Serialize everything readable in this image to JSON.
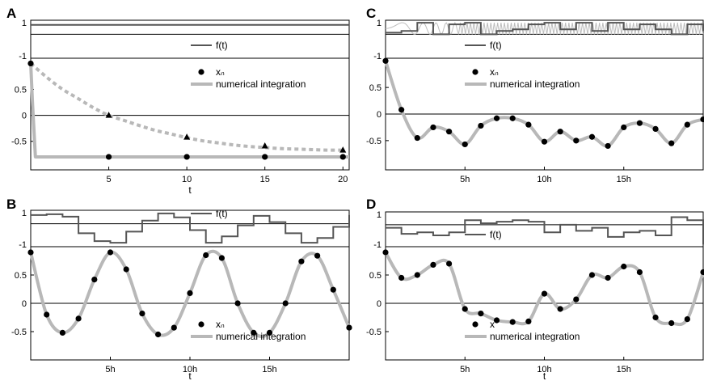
{
  "chart_data": [
    {
      "panel": "A",
      "type": "line",
      "forcing": {
        "yticks": [
          "1",
          "-1"
        ],
        "legend": [
          "f(t)"
        ],
        "values": [
          0.87
        ]
      },
      "xlabel": "t",
      "xticks": [
        "5",
        "10",
        "15",
        "20"
      ],
      "xlim": [
        0,
        20.4
      ],
      "ylim": [
        -1.05,
        1.1
      ],
      "yticks": [
        "0.5",
        "0",
        "-0.5"
      ],
      "legend": [
        "xₙ",
        "numerical integration"
      ],
      "series": [
        {
          "style": "numerical-solid",
          "x": [
            0,
            0.12,
            0.3,
            20.4
          ],
          "y": [
            1.0,
            0.2,
            -0.8,
            -0.8
          ]
        },
        {
          "style": "numerical-dashed",
          "x": [
            0,
            1,
            2,
            3,
            4,
            5,
            6,
            7,
            8,
            9,
            10,
            11,
            12,
            13,
            14,
            15,
            16,
            17,
            18,
            19,
            20
          ],
          "y": [
            1.0,
            0.74,
            0.51,
            0.33,
            0.15,
            0.0,
            -0.1,
            -0.2,
            -0.29,
            -0.36,
            -0.43,
            -0.49,
            -0.53,
            -0.57,
            -0.6,
            -0.62,
            -0.64,
            -0.65,
            -0.66,
            -0.67,
            -0.67
          ]
        }
      ],
      "points": {
        "x": [
          0,
          5,
          10,
          15,
          20
        ],
        "y": [
          1.0,
          -0.8,
          -0.8,
          -0.8,
          -0.8
        ]
      },
      "triangles": {
        "x": [
          5,
          10,
          15,
          20
        ],
        "y": [
          0.0,
          -0.42,
          -0.59,
          -0.67
        ]
      }
    },
    {
      "panel": "B",
      "type": "line",
      "forcing": {
        "yticks": [
          "1",
          "-1"
        ],
        "legend": [
          "f(t)"
        ],
        "step_width": 1,
        "values": [
          0.85,
          0.9,
          0.75,
          -0.3,
          -0.8,
          -0.9,
          -0.2,
          0.5,
          0.95,
          0.7,
          -0.1,
          -0.9,
          -0.5,
          0.2,
          0.8,
          0.4,
          -0.3,
          -0.9,
          -0.6,
          0.1,
          0.85
        ]
      },
      "xlabel": "t",
      "xticks": [
        "5h",
        "10h",
        "15h"
      ],
      "xlim": [
        0,
        20
      ],
      "ylim": [
        -1.0,
        1.0
      ],
      "yticks": [
        "0.5",
        "0",
        "-0.5"
      ],
      "legend": [
        "xₙ",
        "numerical integration"
      ],
      "series": [
        {
          "style": "numerical-solid",
          "x": [
            0,
            1,
            2,
            3,
            4,
            5,
            6,
            7,
            8,
            9,
            10,
            11,
            12,
            13,
            14,
            15,
            16,
            17,
            18,
            19,
            20
          ],
          "y": [
            0.9,
            -0.2,
            -0.52,
            -0.27,
            0.42,
            0.9,
            0.6,
            -0.18,
            -0.55,
            -0.43,
            0.18,
            0.85,
            0.8,
            0.0,
            -0.52,
            -0.52,
            0.0,
            0.74,
            0.84,
            0.24,
            -0.43
          ]
        }
      ],
      "points": {
        "x": [
          0,
          1,
          2,
          3,
          4,
          5,
          6,
          7,
          8,
          9,
          10,
          11,
          12,
          13,
          14,
          15,
          16,
          17,
          18,
          19,
          20
        ],
        "y": [
          0.9,
          -0.2,
          -0.52,
          -0.27,
          0.42,
          0.9,
          0.6,
          -0.18,
          -0.55,
          -0.43,
          0.18,
          0.85,
          0.8,
          0.0,
          -0.52,
          -0.52,
          0.0,
          0.74,
          0.84,
          0.24,
          -0.43
        ]
      }
    },
    {
      "panel": "C",
      "type": "line",
      "forcing": {
        "yticks": [
          "1",
          "-1"
        ],
        "legend": [
          "f(t)"
        ],
        "step_width": 1,
        "values": [
          0.4,
          0.5,
          1.0,
          0.3,
          0.9,
          1.0,
          0.3,
          0.5,
          0.6,
          0.9,
          1.0,
          0.6,
          1.0,
          0.5,
          1.0,
          0.6,
          0.9,
          0.6,
          0.3,
          0.9,
          0.5
        ]
      },
      "xlabel": "",
      "xticks": [
        "5h",
        "10h",
        "15h"
      ],
      "xlim": [
        0,
        20
      ],
      "ylim": [
        -1.05,
        1.05
      ],
      "yticks": [
        "0.5",
        "0",
        "-0.5"
      ],
      "legend": [
        "xₙ",
        "numerical integration"
      ],
      "series": [
        {
          "style": "numerical-solid",
          "x": [
            0,
            1,
            2,
            3,
            4,
            5,
            6,
            7,
            8,
            9,
            10,
            11,
            12,
            13,
            14,
            15,
            16,
            17,
            18,
            19,
            20
          ],
          "y": [
            1.0,
            0.08,
            -0.45,
            -0.25,
            -0.33,
            -0.57,
            -0.22,
            -0.08,
            -0.08,
            -0.2,
            -0.52,
            -0.33,
            -0.5,
            -0.43,
            -0.6,
            -0.25,
            -0.17,
            -0.28,
            -0.55,
            -0.2,
            -0.1
          ]
        }
      ],
      "points": {
        "x": [
          0,
          1,
          2,
          3,
          4,
          5,
          6,
          7,
          8,
          9,
          10,
          11,
          12,
          13,
          14,
          15,
          16,
          17,
          18,
          19,
          20
        ],
        "y": [
          1.0,
          0.08,
          -0.45,
          -0.25,
          -0.33,
          -0.57,
          -0.22,
          -0.08,
          -0.08,
          -0.2,
          -0.52,
          -0.33,
          -0.5,
          -0.43,
          -0.6,
          -0.25,
          -0.17,
          -0.28,
          -0.55,
          -0.2,
          -0.1
        ]
      }
    },
    {
      "panel": "D",
      "type": "line",
      "forcing": {
        "yticks": [
          "1",
          "-1"
        ],
        "legend": [
          "f(t)"
        ],
        "step_width": 1,
        "values": [
          0.1,
          -0.3,
          -0.2,
          -0.4,
          -0.2,
          0.6,
          0.4,
          0.5,
          0.6,
          0.5,
          -0.2,
          0.3,
          -0.1,
          0.1,
          -0.5,
          -0.2,
          -0.1,
          -0.4,
          0.8,
          0.6,
          -1.0
        ]
      },
      "xlabel": "t",
      "xticks": [
        "5h",
        "10h",
        "15h"
      ],
      "xlim": [
        0,
        20
      ],
      "ylim": [
        -1.0,
        1.0
      ],
      "yticks": [
        "0.5",
        "0",
        "-0.5"
      ],
      "legend": [
        "x",
        "numerical integration"
      ],
      "series": [
        {
          "style": "numerical-solid",
          "x": [
            0,
            1,
            2,
            3,
            4,
            5,
            6,
            7,
            8,
            9,
            10,
            11,
            12,
            13,
            14,
            15,
            16,
            17,
            18,
            19,
            20
          ],
          "y": [
            0.9,
            0.45,
            0.5,
            0.68,
            0.7,
            -0.1,
            -0.18,
            -0.3,
            -0.33,
            -0.32,
            0.17,
            -0.1,
            0.07,
            0.5,
            0.45,
            0.65,
            0.55,
            -0.25,
            -0.35,
            -0.28,
            0.55
          ]
        }
      ],
      "points": {
        "x": [
          0,
          1,
          2,
          3,
          4,
          5,
          6,
          7,
          8,
          9,
          10,
          11,
          12,
          13,
          14,
          15,
          16,
          17,
          18,
          19,
          20
        ],
        "y": [
          0.9,
          0.45,
          0.5,
          0.68,
          0.7,
          -0.1,
          -0.18,
          -0.3,
          -0.33,
          -0.32,
          0.17,
          -0.1,
          0.07,
          0.5,
          0.45,
          0.65,
          0.55,
          -0.25,
          -0.35,
          -0.28,
          0.55
        ]
      }
    }
  ]
}
